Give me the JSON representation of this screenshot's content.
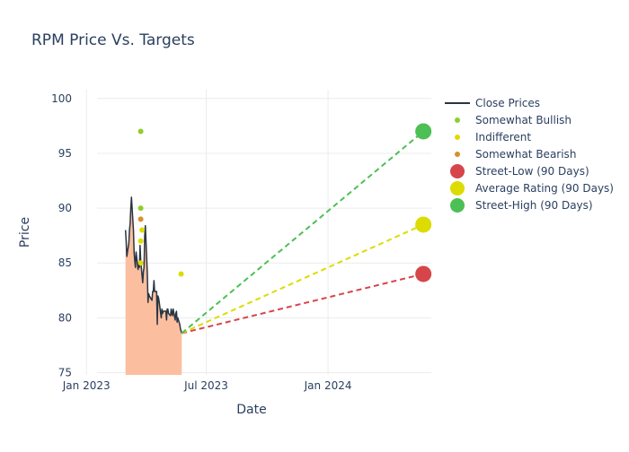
{
  "chart_data": {
    "type": "line",
    "title": "RPM Price Vs. Targets",
    "xlabel": "Date",
    "ylabel": "Price",
    "xlim": [
      "2022-12-10",
      "2024-06-05"
    ],
    "ylim": [
      74.8,
      100.8
    ],
    "x_ticks": [
      {
        "date": "2023-01-01",
        "label": "Jan 2023"
      },
      {
        "date": "2023-07-01",
        "label": "Jul 2023"
      },
      {
        "date": "2024-01-01",
        "label": "Jan 2024"
      }
    ],
    "y_ticks": [
      75,
      80,
      85,
      90,
      95,
      100
    ],
    "grid": true,
    "legend_position": "right",
    "colors": {
      "close": "#2a3542",
      "fill": "#fbbf9f",
      "somewhat_bullish": "#8fce2a",
      "indifferent": "#dcdc00",
      "somewhat_bearish": "#d9902a",
      "street_low": "#d6454a",
      "average": "#dcdc00",
      "street_high": "#4cc054",
      "grid": "#ececec",
      "text": "#2a3f5f"
    },
    "series": [
      {
        "name": "Close Prices",
        "type": "line",
        "x": [
          "2023-03-01",
          "2023-03-02",
          "2023-03-03",
          "2023-03-06",
          "2023-03-07",
          "2023-03-08",
          "2023-03-09",
          "2023-03-10",
          "2023-03-13",
          "2023-03-14",
          "2023-03-15",
          "2023-03-16",
          "2023-03-17",
          "2023-03-20",
          "2023-03-21",
          "2023-03-22",
          "2023-03-23",
          "2023-03-24",
          "2023-03-27",
          "2023-03-28",
          "2023-03-29",
          "2023-03-30",
          "2023-03-31",
          "2023-04-03",
          "2023-04-04",
          "2023-04-05",
          "2023-04-06",
          "2023-04-10",
          "2023-04-11",
          "2023-04-12",
          "2023-04-13",
          "2023-04-14",
          "2023-04-17",
          "2023-04-18",
          "2023-04-19",
          "2023-04-20",
          "2023-04-21",
          "2023-04-24",
          "2023-04-25",
          "2023-04-26",
          "2023-04-27",
          "2023-04-28",
          "2023-05-01",
          "2023-05-02",
          "2023-05-03",
          "2023-05-04",
          "2023-05-05",
          "2023-05-08",
          "2023-05-09",
          "2023-05-10",
          "2023-05-11",
          "2023-05-12",
          "2023-05-15",
          "2023-05-16",
          "2023-05-17",
          "2023-05-18",
          "2023-05-19",
          "2023-05-22",
          "2023-05-23",
          "2023-05-24",
          "2023-05-25"
        ],
        "y": [
          88.0,
          87.0,
          85.6,
          86.8,
          88.0,
          88.6,
          90.0,
          91.0,
          88.0,
          86.0,
          85.2,
          84.6,
          86.0,
          84.4,
          85.0,
          84.6,
          86.6,
          85.2,
          83.2,
          84.2,
          84.6,
          87.5,
          88.4,
          84.0,
          81.4,
          82.2,
          82.0,
          81.6,
          82.4,
          82.4,
          83.4,
          82.4,
          82.4,
          79.4,
          82.0,
          81.8,
          81.4,
          80.0,
          80.8,
          80.4,
          80.6,
          80.6,
          80.6,
          79.8,
          80.8,
          80.8,
          80.4,
          80.2,
          80.8,
          80.4,
          80.2,
          80.8,
          79.8,
          80.4,
          80.6,
          79.6,
          80.0,
          79.4,
          79.0,
          78.8,
          78.6
        ]
      },
      {
        "name": "Somewhat Bullish",
        "type": "scatter",
        "x": [
          "2023-03-24",
          "2023-03-24"
        ],
        "y": [
          97,
          90
        ]
      },
      {
        "name": "Indifferent",
        "type": "scatter",
        "x": [
          "2023-03-24",
          "2023-03-26",
          "2023-03-24",
          "2023-05-24"
        ],
        "y": [
          87,
          88,
          85,
          84
        ]
      },
      {
        "name": "Somewhat Bearish",
        "type": "scatter",
        "x": [
          "2023-03-24"
        ],
        "y": [
          89
        ]
      },
      {
        "name": "Street-Low (90 Days)",
        "type": "scatter",
        "x": [
          "2024-05-24"
        ],
        "y": [
          84
        ]
      },
      {
        "name": "Average Rating (90 Days)",
        "type": "scatter",
        "x": [
          "2024-05-24"
        ],
        "y": [
          88.5
        ]
      },
      {
        "name": "Street-High (90 Days)",
        "type": "scatter",
        "x": [
          "2024-05-24"
        ],
        "y": [
          97
        ]
      }
    ],
    "projections": [
      {
        "from": [
          "2023-05-25",
          78.6
        ],
        "to": [
          "2024-05-24",
          84
        ]
      },
      {
        "from": [
          "2023-05-25",
          78.6
        ],
        "to": [
          "2024-05-24",
          88.5
        ]
      },
      {
        "from": [
          "2023-05-25",
          78.6
        ],
        "to": [
          "2024-05-24",
          97
        ]
      }
    ]
  }
}
